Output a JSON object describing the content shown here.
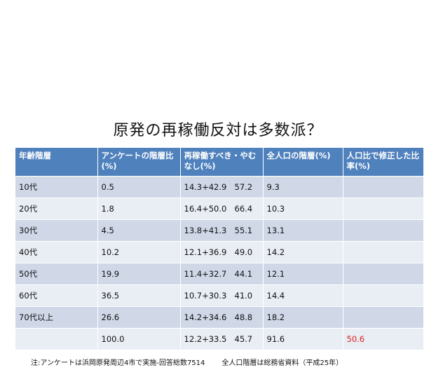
{
  "title": "原発の再稼働反対は多数派？",
  "table": {
    "headers": [
      "年齢階層",
      "アンケートの階層比(%)",
      "再稼働すべき・やむなし(%)",
      "全人口の階層(%)",
      "人口比で修正した比率(%)"
    ],
    "rows": [
      {
        "age": "10代",
        "ratio": "0.5",
        "formula": "14.3+42.9",
        "sum": "57.2",
        "pop": "9.3",
        "adjusted": ""
      },
      {
        "age": "20代",
        "ratio": "1.8",
        "formula": "16.4+50.0",
        "sum": "66.4",
        "pop": "10.3",
        "adjusted": ""
      },
      {
        "age": "30代",
        "ratio": "4.5",
        "formula": "13.8+41.3",
        "sum": "55.1",
        "pop": "13.1",
        "adjusted": ""
      },
      {
        "age": "40代",
        "ratio": "10.2",
        "formula": "12.1+36.9",
        "sum": "49.0",
        "pop": "14.2",
        "adjusted": ""
      },
      {
        "age": "50代",
        "ratio": "19.9",
        "formula": "11.4+32.7",
        "sum": "44.1",
        "pop": "12.1",
        "adjusted": ""
      },
      {
        "age": "60代",
        "ratio": "36.5",
        "formula": "10.7+30.3",
        "sum": "41.0",
        "pop": "14.4",
        "adjusted": ""
      },
      {
        "age": "70代以上",
        "ratio": "26.6",
        "formula": "14.2+34.6",
        "sum": "48.8",
        "pop": "18.2",
        "adjusted": ""
      },
      {
        "age": "",
        "ratio": "100.0",
        "formula": "12.2+33.5",
        "sum": "45.7",
        "pop": "91.6",
        "adjusted": "50.6"
      }
    ]
  },
  "note": {
    "left": "注:アンケートは浜岡原発周辺4市で実施-回答総数7514",
    "right": "全人口階層は総務省資料（平成25年）"
  },
  "colors": {
    "header": "#4f81bd",
    "row_odd": "#d0d8e8",
    "row_even": "#e9edf4",
    "highlight": "#e02020"
  }
}
